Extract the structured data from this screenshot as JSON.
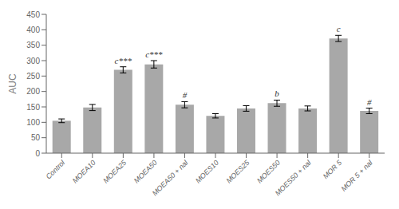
{
  "chart_data": {
    "type": "bar",
    "categories": [
      "Control",
      "MOEA10",
      "MOEA25",
      "MOEA50",
      "MOEA50 + nal",
      "MOES10",
      "MOES25",
      "MOES50",
      "MOES50 + nal",
      "MOR 5",
      "MOR 5 + nal"
    ],
    "values": [
      105,
      148,
      270,
      288,
      157,
      121,
      145,
      162,
      145,
      372,
      137
    ],
    "errors": [
      6,
      10,
      10,
      12,
      10,
      7,
      9,
      10,
      8,
      10,
      9
    ],
    "color": "#a8a8a8",
    "ylabel": "AUC",
    "ylim": [
      0,
      450
    ],
    "yticks": [
      0,
      50,
      100,
      150,
      200,
      250,
      300,
      350,
      400,
      450
    ],
    "annotations": [
      {
        "category": "MOEA25",
        "text": "c***"
      },
      {
        "category": "MOEA50",
        "text": "c***"
      },
      {
        "category": "MOEA50 + nal",
        "text": "#"
      },
      {
        "category": "MOES50",
        "text": "b"
      },
      {
        "category": "MOR 5",
        "text": "c"
      },
      {
        "category": "MOR 5 + nal",
        "text": "#"
      }
    ],
    "grid": false
  }
}
